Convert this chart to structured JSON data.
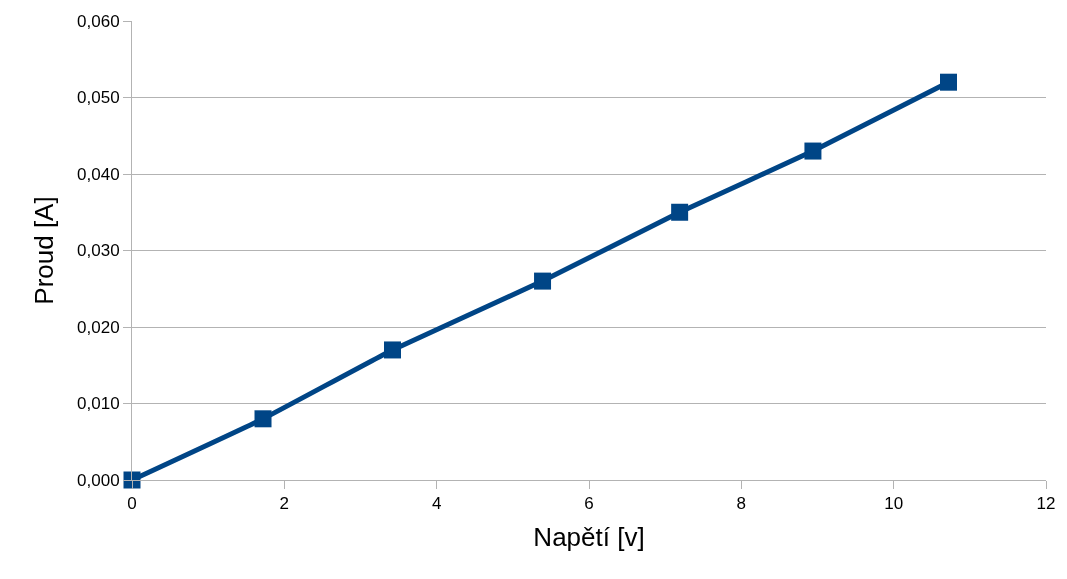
{
  "chart_data": {
    "type": "line",
    "xlabel": "Napětí [v]",
    "ylabel": "Proud [A]",
    "x": [
      0,
      1.72,
      3.42,
      5.39,
      7.19,
      8.94,
      10.72
    ],
    "series": [
      {
        "color": "#004586",
        "values": [
          0,
          0.008,
          0.017,
          0.026,
          0.035,
          0.043,
          0.052
        ]
      }
    ],
    "xlim": [
      0,
      12
    ],
    "xticks": [
      0,
      2,
      4,
      6,
      8,
      10,
      12
    ],
    "ylim": [
      0,
      0.06
    ],
    "yticks": [
      {
        "value": 0,
        "label": "0,000"
      },
      {
        "value": 0.01,
        "label": "0,010"
      },
      {
        "value": 0.02,
        "label": "0,020"
      },
      {
        "value": 0.03,
        "label": "0,030"
      },
      {
        "value": 0.04,
        "label": "0,040"
      },
      {
        "value": 0.05,
        "label": "0,050"
      },
      {
        "value": 0.06,
        "label": "0,060"
      }
    ],
    "grid": "y",
    "marker": "square",
    "line_style": "solid",
    "legend": false
  }
}
